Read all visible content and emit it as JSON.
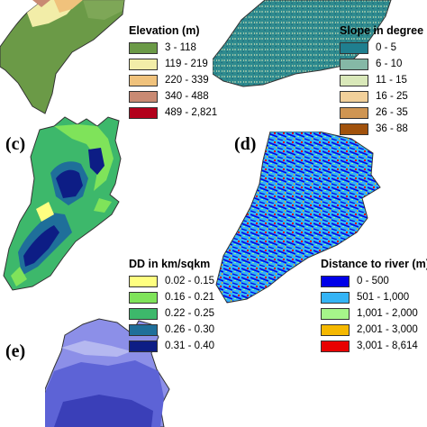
{
  "panels": {
    "c": {
      "label": "(c)"
    },
    "d": {
      "label": "(d)"
    },
    "e": {
      "label": "(e)"
    }
  },
  "legends": {
    "elevation": {
      "title": "Elevation (m)",
      "items": [
        {
          "label": "3 - 118",
          "color": "#6b9a47"
        },
        {
          "label": "119 - 219",
          "color": "#f2eda8"
        },
        {
          "label": "220 - 339",
          "color": "#f0c27c"
        },
        {
          "label": "340 - 488",
          "color": "#c98a73"
        },
        {
          "label": "489 - 2,821",
          "color": "#b3001b"
        }
      ]
    },
    "slope": {
      "title": "Slope in degree",
      "items": [
        {
          "label": "0 - 5",
          "color": "#1f7f8f"
        },
        {
          "label": "6 - 10",
          "color": "#85b8a6"
        },
        {
          "label": "11 - 15",
          "color": "#d9e8b9"
        },
        {
          "label": "16 - 25",
          "color": "#f2d09a"
        },
        {
          "label": "26 - 35",
          "color": "#cf9552"
        },
        {
          "label": "36 - 88",
          "color": "#a1520c"
        }
      ]
    },
    "dd": {
      "title": "DD in km/sqkm",
      "items": [
        {
          "label": "0.02 - 0.15",
          "color": "#ffff80"
        },
        {
          "label": "0.16 - 0.21",
          "color": "#7fe35a"
        },
        {
          "label": "0.22 - 0.25",
          "color": "#3db86b"
        },
        {
          "label": "0.26 - 0.30",
          "color": "#1f6f9a"
        },
        {
          "label": "0.31 - 0.40",
          "color": "#0d1d85"
        }
      ]
    },
    "river": {
      "title": "Distance to river (m)",
      "items": [
        {
          "label": "0 - 500",
          "color": "#0000e8"
        },
        {
          "label": "501 - 1,000",
          "color": "#35b4f5"
        },
        {
          "label": "1,001 - 2,000",
          "color": "#a6f58a"
        },
        {
          "label": "2,001 - 3,000",
          "color": "#f5b800"
        },
        {
          "label": "3,001 - 8,614",
          "color": "#e80000"
        }
      ]
    }
  }
}
